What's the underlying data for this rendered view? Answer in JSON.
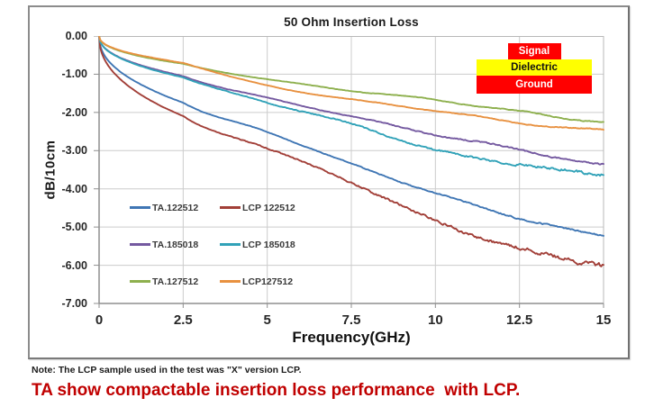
{
  "figure": {
    "note": "Note: The LCP sample used in the test was \"X\" version LCP.",
    "headline": "TA show compactable insertion loss performance  with LCP.",
    "headline_color": "#c00000"
  },
  "chart_data": {
    "type": "line",
    "title": "50 Ohm Insertion Loss",
    "xlabel": "Frequency(GHz)",
    "ylabel": "dB/10cm",
    "xlim": [
      0,
      15
    ],
    "ylim": [
      -7,
      0
    ],
    "x_ticks": [
      "0",
      "2.5",
      "5",
      "7.5",
      "10",
      "12.5",
      "15"
    ],
    "y_ticks": [
      "0.00",
      "-1.00",
      "-2.00",
      "-3.00",
      "-4.00",
      "-5.00",
      "-6.00",
      "-7.00"
    ],
    "grid": true,
    "legend_position": "inside-lower-left",
    "x_samples": [
      0,
      2.5,
      5,
      7.5,
      10,
      12.5,
      15
    ],
    "series": [
      {
        "name": "TA.122512",
        "color": "#3f76b4",
        "noise": 0.035,
        "values": [
          0,
          -1.74,
          -2.51,
          -3.35,
          -4.11,
          -4.76,
          -5.22
        ]
      },
      {
        "name": "LCP 122512",
        "color": "#a23f38",
        "noise": 0.105,
        "values": [
          0,
          -2.1,
          -2.93,
          -3.83,
          -4.84,
          -5.56,
          -5.98
        ]
      },
      {
        "name": "TA.185018",
        "color": "#7459a0",
        "noise": 0.035,
        "values": [
          0,
          -1.05,
          -1.62,
          -2.1,
          -2.58,
          -2.97,
          -3.38
        ]
      },
      {
        "name": "LCP 185018",
        "color": "#31a2b8",
        "noise": 0.065,
        "values": [
          0,
          -1.08,
          -1.74,
          -2.3,
          -2.99,
          -3.36,
          -3.62
        ]
      },
      {
        "name": "TA.127512",
        "color": "#8eb04e",
        "noise": 0.016,
        "values": [
          0,
          -0.73,
          -1.13,
          -1.43,
          -1.67,
          -1.98,
          -2.24
        ]
      },
      {
        "name": "LCP127512",
        "color": "#e89140",
        "noise": 0.016,
        "values": [
          0,
          -0.7,
          -1.3,
          -1.66,
          -1.95,
          -2.27,
          -2.47
        ]
      }
    ],
    "stackup": {
      "signal_label": "Signal",
      "dielectric_label": "Dielectric",
      "ground_label": "Ground",
      "signal_color": "#ff0000",
      "dielectric_color": "#ffff00",
      "ground_color": "#ff0000"
    }
  }
}
